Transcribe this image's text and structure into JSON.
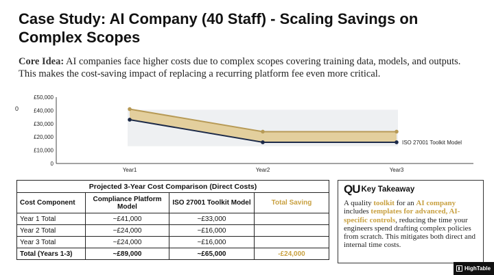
{
  "title": "Case Study: AI Company (40  Staff) - Scaling Savings on Complex Scopes",
  "core_idea": {
    "label": "Core Idea:",
    "text": " AI companies face higher costs due to complex scopes covering training data, models, and outputs. This makes the cost-saving impact of replacing a recurring platform fee even more critical."
  },
  "chart_data": {
    "type": "area",
    "categories": [
      "Year1",
      "Year2",
      "Year3"
    ],
    "ylim": [
      0,
      50000
    ],
    "y_ticks": [
      "£50,000",
      "£40,000",
      "£30,000",
      "£20,000",
      "£10,000",
      "0"
    ],
    "series": [
      {
        "name": "",
        "values": [
          41000,
          24000,
          24000
        ],
        "color": "#b79a56"
      },
      {
        "name": "ISO 27001 Toolkit Model",
        "values": [
          33000,
          16000,
          16000
        ],
        "color": "#1c2a48"
      }
    ],
    "fill_between": "#e3cf9d",
    "legend": "right",
    "stray_label": "0"
  },
  "table": {
    "caption": "Projected 3-Year Cost Comparison (Direct Costs)",
    "headers": [
      "Cost Component",
      "Compliance Platform Model",
      "ISO 27001 Toolkit Model",
      "Total Saving"
    ],
    "rows": [
      [
        "Year 1 Total",
        "~£41,000",
        "~£33,000",
        ""
      ],
      [
        "Year 2 Total",
        "~£24,000",
        "~£16,000",
        ""
      ],
      [
        "Year 3 Total",
        "~£24,000",
        "~£16,000",
        ""
      ]
    ],
    "total": [
      "Total (Years 1-3)",
      "~£89,000",
      "~£65,000",
      "-£24,000"
    ]
  },
  "takeaway": {
    "icon": "QU",
    "title": "Key Takeaway",
    "parts": [
      "A quality ",
      "toolkit",
      " for an ",
      "AI company",
      " includes ",
      "templates for advanced, AI-specific controls",
      ", reducing the time your engineers spend drafting complex policies from scratch. This mitigates both direct and internal time costs."
    ]
  },
  "logo": {
    "text": "HighTable"
  },
  "accent_color": "#c8a040"
}
